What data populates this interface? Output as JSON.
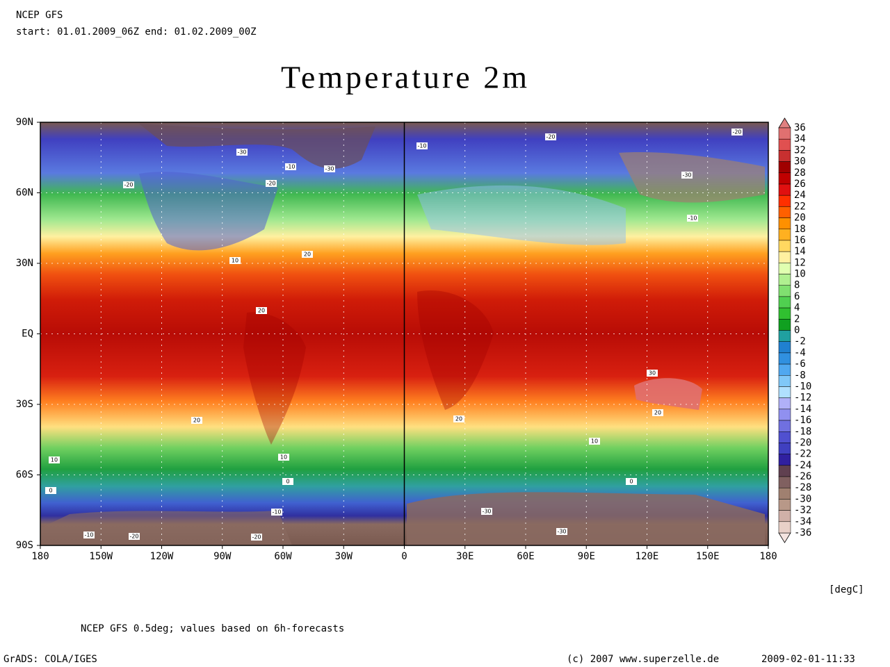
{
  "header": {
    "model": "NCEP GFS",
    "period": "start: 01.01.2009_06Z end: 01.02.2009_00Z"
  },
  "title": "Temperature 2m",
  "map": {
    "xlim": [
      -180,
      180
    ],
    "ylim": [
      -90,
      90
    ],
    "xticks": [
      {
        "value": -180,
        "label": "180"
      },
      {
        "value": -150,
        "label": "150W"
      },
      {
        "value": -120,
        "label": "120W"
      },
      {
        "value": -90,
        "label": "90W"
      },
      {
        "value": -60,
        "label": "60W"
      },
      {
        "value": -30,
        "label": "30W"
      },
      0,
      {
        "value": 30,
        "label": "30E"
      },
      {
        "value": 60,
        "label": "60E"
      },
      {
        "value": 90,
        "label": "90E"
      },
      {
        "value": 120,
        "label": "120E"
      },
      {
        "value": 150,
        "label": "150E"
      },
      180
    ],
    "yticks": [
      {
        "value": 90,
        "label": "90N"
      },
      {
        "value": 60,
        "label": "60N"
      },
      {
        "value": 30,
        "label": "30N"
      },
      {
        "value": 0,
        "label": "EQ"
      },
      {
        "value": -30,
        "label": "30S"
      },
      {
        "value": -60,
        "label": "60S"
      },
      {
        "value": -90,
        "label": "90S"
      }
    ],
    "grid": true,
    "contour_labels": [
      -30,
      -10,
      -30,
      -20,
      -20,
      20,
      10,
      20,
      20,
      10,
      10,
      0,
      0,
      -10,
      -20,
      -20,
      -10,
      -30,
      -30,
      0,
      10,
      20,
      20,
      30,
      -20,
      -10,
      -20,
      -30,
      -10
    ]
  },
  "colorbar": {
    "levels": [
      36,
      34,
      32,
      30,
      28,
      26,
      24,
      22,
      20,
      18,
      16,
      14,
      12,
      10,
      8,
      6,
      4,
      2,
      0,
      -2,
      -4,
      -6,
      -8,
      -10,
      -12,
      -14,
      -16,
      -18,
      -20,
      -22,
      -24,
      -26,
      -28,
      -30,
      -32,
      -34,
      -36
    ],
    "colors": [
      "#e07070",
      "#e05050",
      "#c83030",
      "#a00000",
      "#c00000",
      "#e01010",
      "#ff3000",
      "#ff6000",
      "#ff9000",
      "#ffb020",
      "#ffd860",
      "#fff0a0",
      "#e0ffb0",
      "#b0f090",
      "#80e070",
      "#50d050",
      "#30c030",
      "#10a020",
      "#20a0a0",
      "#2080d0",
      "#3090e0",
      "#50a8f0",
      "#80c8f8",
      "#b0e0ff",
      "#b0b0f8",
      "#9090f0",
      "#7070e0",
      "#5050d0",
      "#4040c0",
      "#3020a0",
      "#604050",
      "#806060",
      "#a08070",
      "#b89888",
      "#d0b0a8",
      "#e8d0c8"
    ],
    "unit": "[degC]"
  },
  "footer": {
    "note": "NCEP GFS 0.5deg; values based on 6h-forecasts",
    "software": "GrADS: COLA/IGES",
    "credit": "(c) 2007 www.superzelle.de",
    "timestamp": "2009-02-01-11:33"
  }
}
